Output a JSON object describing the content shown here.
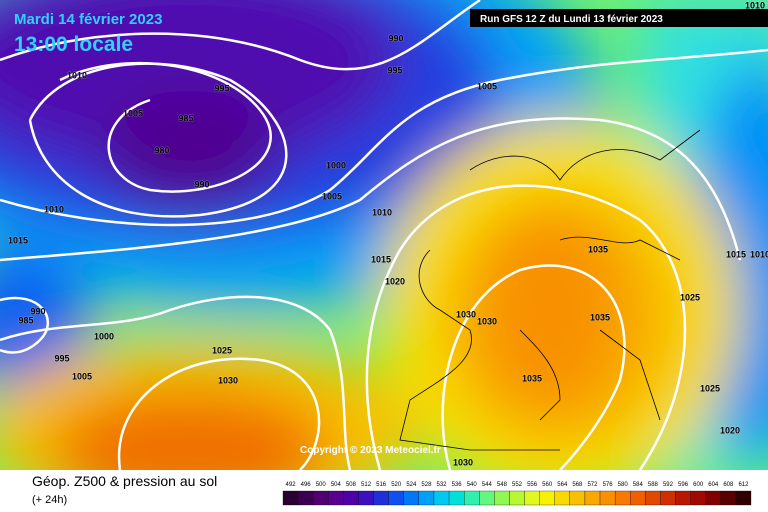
{
  "header": {
    "date": "Mardi 14 février 2023",
    "time": "13:00 locale",
    "run": "Run GFS 12 Z du Lundi 13 février 2023"
  },
  "copyright": "Copyright © 2023 Meteociel.fr",
  "footer": {
    "title": "Géop. Z500 & pression au sol",
    "lead": "(+ 24h)"
  },
  "isobar_labels": [
    990,
    995,
    1005,
    995,
    1005,
    985,
    980,
    990,
    1010,
    1000,
    1005,
    1010,
    1010,
    1015,
    1035,
    1015,
    1010,
    1015,
    1020,
    990,
    985,
    1030,
    1030,
    1035,
    1025,
    1000,
    995,
    1025,
    1005,
    1030,
    1035,
    1025,
    1020,
    1010,
    1030
  ],
  "legend": {
    "ticks": [
      492,
      496,
      500,
      504,
      508,
      512,
      516,
      520,
      524,
      528,
      532,
      536,
      540,
      544,
      548,
      552,
      556,
      560,
      564,
      568,
      572,
      576,
      580,
      584,
      588,
      592,
      596,
      600,
      604,
      608,
      612
    ],
    "colors": [
      "#2a0030",
      "#3c0050",
      "#500070",
      "#5a0090",
      "#5000a8",
      "#3a10c0",
      "#2030d8",
      "#1050f0",
      "#0078f8",
      "#00a0f8",
      "#00c8f0",
      "#00e0d8",
      "#30f0b0",
      "#60f880",
      "#90f850",
      "#b8f830",
      "#e0f820",
      "#f8f000",
      "#f8d800",
      "#f8c000",
      "#f8a800",
      "#f89000",
      "#f87800",
      "#f06000",
      "#e04800",
      "#d03000",
      "#b81800",
      "#a00800",
      "#800000",
      "#580000",
      "#300000"
    ]
  }
}
